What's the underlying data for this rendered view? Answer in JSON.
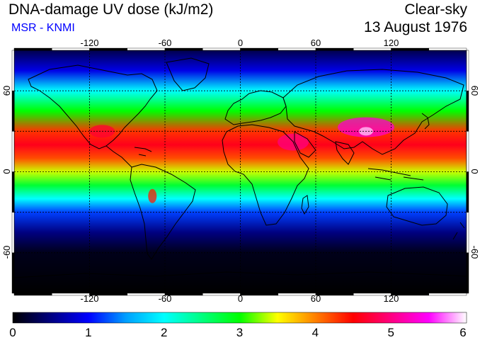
{
  "header": {
    "title": "DNA-damage UV dose (kJ/m2)",
    "source": "MSR - KNMI",
    "condition": "Clear-sky",
    "date": "13 August 1976"
  },
  "map": {
    "projection": "equirectangular",
    "lon_range": [
      -180,
      180
    ],
    "lat_range": [
      -90,
      90
    ],
    "grid_lon": [
      -120,
      -60,
      0,
      60,
      120
    ],
    "grid_lat": [
      -60,
      -30,
      0,
      30,
      60
    ],
    "lon_tick_labels": [
      "-120",
      "-60",
      "0",
      "60",
      "120"
    ],
    "lat_tick_labels": [
      "-60",
      "0",
      "60"
    ],
    "grid": true,
    "coastlines": true
  },
  "colorbar": {
    "min": 0,
    "max": 6,
    "tick_labels": [
      "0",
      "1",
      "2",
      "3",
      "4",
      "5",
      "6"
    ],
    "colors": [
      "#000000",
      "#000080",
      "#0000ff",
      "#00a0ff",
      "#00ffff",
      "#00ff80",
      "#00ff00",
      "#ffff00",
      "#ff8000",
      "#ff0000",
      "#ff0080",
      "#ff00ff",
      "#ffffff"
    ]
  },
  "chart_data": {
    "type": "heatmap",
    "title": "DNA-damage UV dose (kJ/m2)",
    "variable": "DNA-damage UV dose",
    "units": "kJ/m2",
    "approx_zonal_profile": [
      {
        "lat": 90,
        "value": 0.3
      },
      {
        "lat": 75,
        "value": 0.9
      },
      {
        "lat": 60,
        "value": 2.0
      },
      {
        "lat": 45,
        "value": 3.0
      },
      {
        "lat": 30,
        "value": 4.3
      },
      {
        "lat": 20,
        "value": 4.6
      },
      {
        "lat": 10,
        "value": 4.2
      },
      {
        "lat": 0,
        "value": 3.4
      },
      {
        "lat": -10,
        "value": 2.8
      },
      {
        "lat": -20,
        "value": 2.0
      },
      {
        "lat": -30,
        "value": 1.2
      },
      {
        "lat": -45,
        "value": 0.5
      },
      {
        "lat": -60,
        "value": 0.1
      },
      {
        "lat": -90,
        "value": 0.0
      }
    ]
  }
}
